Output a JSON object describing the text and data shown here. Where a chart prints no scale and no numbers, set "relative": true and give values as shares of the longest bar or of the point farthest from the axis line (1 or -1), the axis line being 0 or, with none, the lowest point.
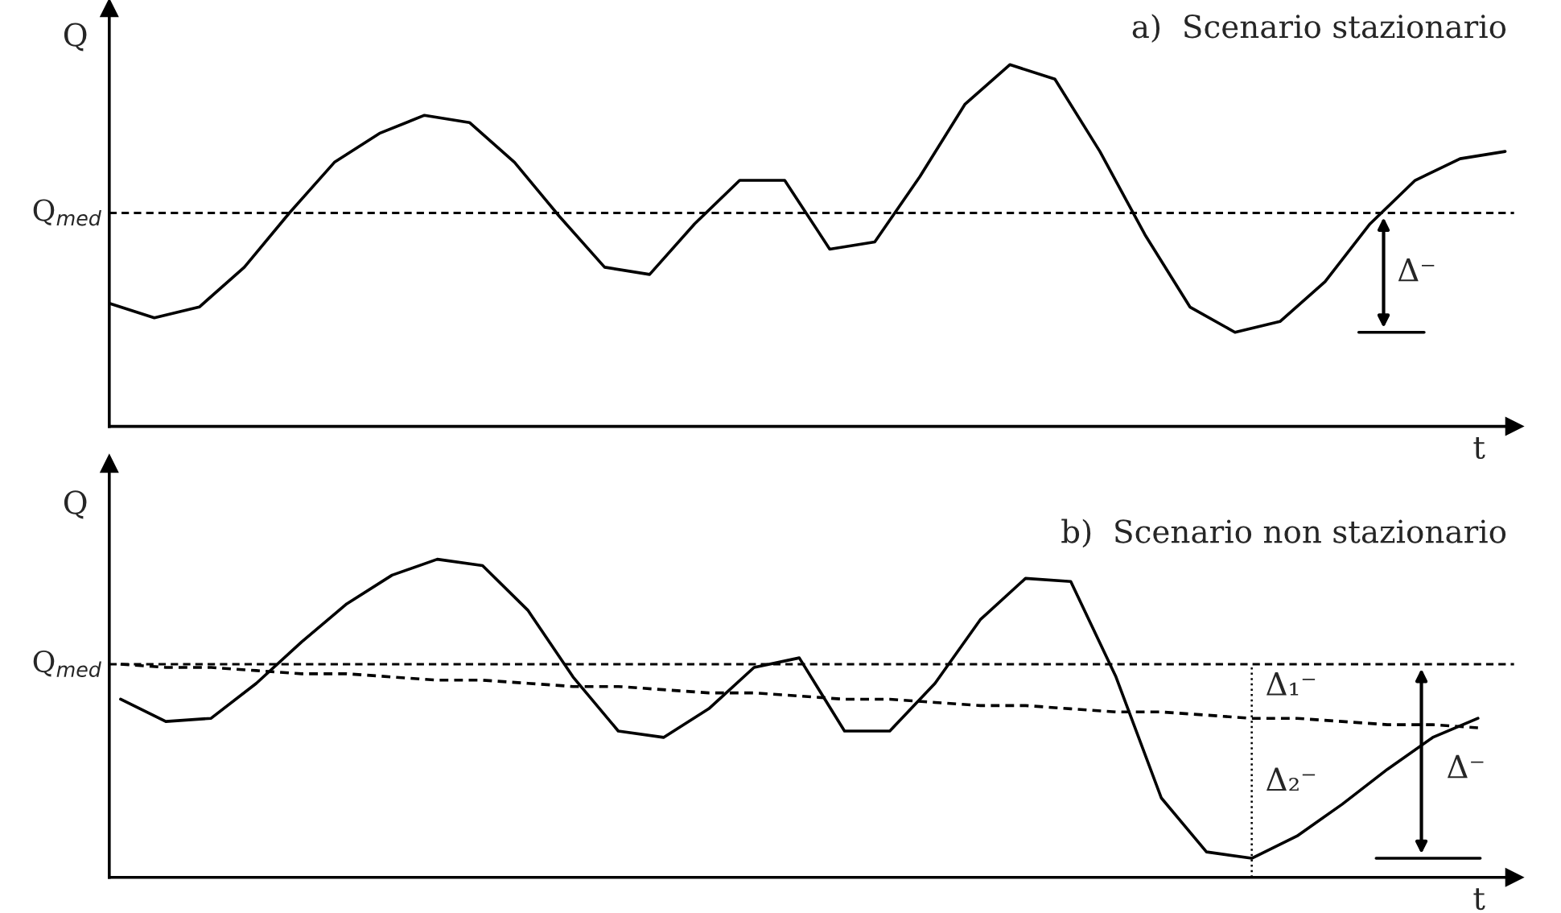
{
  "chart_data": [
    {
      "type": "line",
      "relative": true,
      "title": "a)  Scenario stazionario",
      "ylabel": "Q",
      "xlabel": "t",
      "line_style": "solid",
      "categories": [
        null,
        null,
        null,
        null,
        null,
        null,
        null,
        null,
        null,
        null,
        null,
        null,
        null,
        null,
        null,
        null,
        null,
        null,
        null,
        null,
        null,
        null,
        null,
        null,
        null,
        null,
        null,
        null,
        null,
        null,
        null,
        null
      ],
      "series": [
        {
          "color": "#000000",
          "values": [
            0.34,
            0.3,
            0.33,
            0.44,
            0.59,
            0.73,
            0.81,
            0.86,
            0.84,
            0.73,
            0.58,
            0.44,
            0.42,
            0.56,
            0.68,
            0.68,
            0.49,
            0.51,
            0.69,
            0.89,
            1.0,
            0.96,
            0.76,
            0.53,
            0.33,
            0.26,
            0.29,
            0.4,
            0.56,
            0.68,
            0.74,
            0.76
          ]
        }
      ],
      "ref_lines": [
        {
          "axis": "y",
          "value": 0.59,
          "label": "Q$_{med}$",
          "line_style": "dashed",
          "color": "#000000"
        }
      ],
      "annotations": [
        "Δ⁻"
      ]
    },
    {
      "type": "line",
      "relative": true,
      "title": "b)  Scenario non stazionario",
      "ylabel": "Q",
      "xlabel": "t",
      "line_style": "solid",
      "categories": [
        null,
        null,
        null,
        null,
        null,
        null,
        null,
        null,
        null,
        null,
        null,
        null,
        null,
        null,
        null,
        null,
        null,
        null,
        null,
        null,
        null,
        null,
        null,
        null,
        null,
        null,
        null,
        null,
        null,
        null,
        null
      ],
      "series": [
        {
          "color": "#000000",
          "values": [
            0.56,
            0.49,
            0.5,
            0.61,
            0.74,
            0.86,
            0.95,
            1.0,
            0.98,
            0.84,
            0.63,
            0.46,
            0.44,
            0.53,
            0.66,
            0.69,
            0.46,
            0.46,
            0.61,
            0.81,
            0.94,
            0.93,
            0.63,
            0.25,
            0.08,
            0.06,
            0.13,
            0.23,
            0.34,
            0.44,
            0.5
          ]
        },
        {
          "color": "#000000",
          "line_style": "dashed",
          "values": [
            0.67,
            0.66,
            0.66,
            0.65,
            0.64,
            0.64,
            0.63,
            0.62,
            0.62,
            0.61,
            0.6,
            0.6,
            0.59,
            0.58,
            0.58,
            0.57,
            0.56,
            0.56,
            0.55,
            0.54,
            0.54,
            0.53,
            0.52,
            0.52,
            0.51,
            0.5,
            0.5,
            0.49,
            0.48,
            0.48,
            0.47
          ]
        }
      ],
      "ref_lines": [
        {
          "axis": "y",
          "value": 0.67,
          "label": "Q$_{med}$",
          "line_style": "dashed",
          "color": "#000000"
        }
      ],
      "annotations": [
        "Δ₁⁻",
        "Δ₂⁻",
        "Δ⁻"
      ]
    }
  ]
}
